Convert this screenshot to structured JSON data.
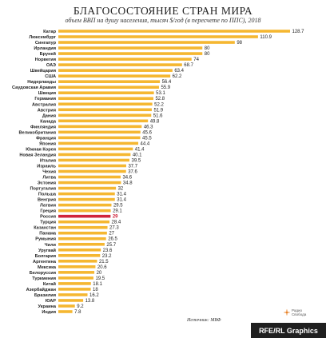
{
  "chart_data": {
    "type": "bar",
    "orientation": "horizontal",
    "title": "БЛАГОСОСТОЯНИЕ СТРАН МИРА",
    "subtitle": "объем ВВП на душу населения, тысяч $/год (в пересчете по ППС), 2018",
    "categories": [
      "Катар",
      "Люксембург",
      "Сингапур",
      "Ирландия",
      "Бруней",
      "Норвегия",
      "ОАЭ",
      "Швейцария",
      "США",
      "Нидерланды",
      "Саудовская Аравия",
      "Швеция",
      "Германия",
      "Австралия",
      "Австрия",
      "Дания",
      "Канада",
      "Финляндия",
      "Великобритания",
      "Франция",
      "Япония",
      "Южная Корея",
      "Новая Зеландия",
      "Италия",
      "Израиль",
      "Чехия",
      "Литва",
      "Эстония",
      "Португалия",
      "Польша",
      "Венгрия",
      "Латвия",
      "Греция",
      "Россия",
      "Турция",
      "Казахстан",
      "Панама",
      "Румыния",
      "Чили",
      "Уругвай",
      "Болгария",
      "Аргентина",
      "Мексика",
      "Белоруссия",
      "Туркмения",
      "Китай",
      "Азербайджан",
      "Бразилия",
      "ЮАР",
      "Украина",
      "Индия"
    ],
    "values": [
      "128.7",
      "110.9",
      "98",
      "80",
      "80",
      "74",
      "68.7",
      "63.4",
      "62.2",
      "56.4",
      "55.9",
      "53.1",
      "52.8",
      "52.2",
      "51.9",
      "51.6",
      "49.8",
      "46.3",
      "45.6",
      "45.5",
      "44.4",
      "41.4",
      "40.1",
      "39.5",
      "37.7",
      "37.6",
      "34.6",
      "34.8",
      "32",
      "31.4",
      "31.4",
      "29.5",
      "29.1",
      "29",
      "28.4",
      "27.3",
      "27",
      "26.5",
      "25.7",
      "23.6",
      "23.2",
      "21.5",
      "20.6",
      "20",
      "19.5",
      "18.1",
      "18",
      "16.2",
      "13.8",
      "9.2",
      "7.8"
    ],
    "highlight": "Россия",
    "xlim": [
      0,
      128.7
    ]
  },
  "source": "Источник: МВФ",
  "logo_text": "Радио\nСвобода",
  "credit": "RFE/RL Graphics",
  "colors": {
    "bar": "#f5b731",
    "bar_highlight": "#d0253b",
    "value_highlight": "#d0253b",
    "credit_bg": "#1f1f1f",
    "logo": "#e8832a"
  }
}
